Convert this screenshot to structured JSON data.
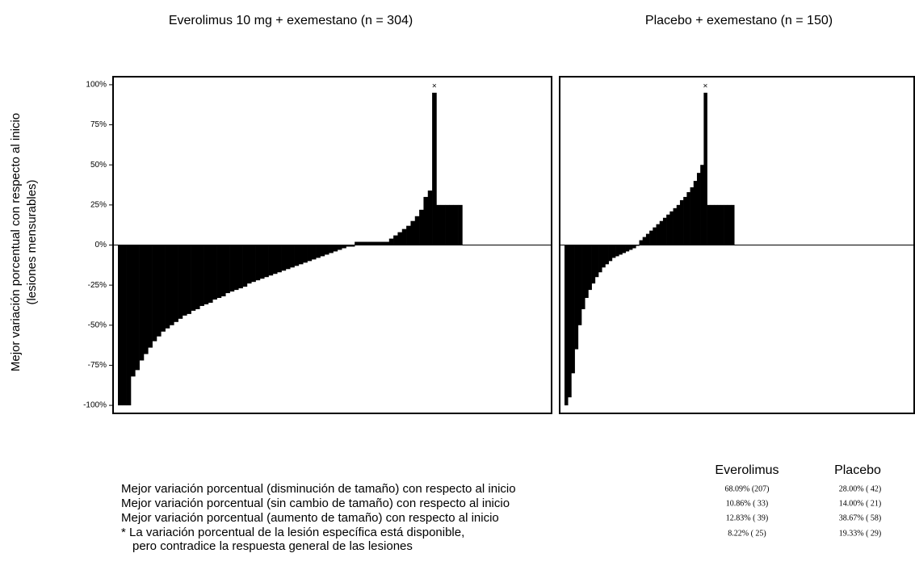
{
  "chart_data": [
    {
      "type": "waterfall",
      "title": "Everolimus 10 mg + exemestano (n = 304)",
      "y_label": [
        "Mejor variación porcentual con respecto al inicio",
        "(lesiones mensurables)"
      ],
      "values": [
        -100,
        -100,
        -100,
        -82,
        -78,
        -72,
        -68,
        -64,
        -60,
        -57,
        -54,
        -52,
        -50,
        -48,
        -46,
        -44,
        -43,
        -41,
        -40,
        -38,
        -37,
        -36,
        -34,
        -33,
        -32,
        -30,
        -29,
        -28,
        -27,
        -26,
        -24,
        -23,
        -22,
        -21,
        -20,
        -19,
        -18,
        -17,
        -16,
        -15,
        -14,
        -13,
        -12,
        -11,
        -10,
        -9,
        -8,
        -7,
        -6,
        -5,
        -4,
        -3,
        -2,
        -1,
        -1,
        2,
        2,
        2,
        2,
        2,
        2,
        2,
        2,
        4,
        6,
        8,
        10,
        12,
        15,
        18,
        22,
        30,
        34,
        95,
        25,
        25,
        25,
        25,
        25,
        25
      ],
      "color": "#000000",
      "annotation": "×",
      "ylim": [
        -105,
        105
      ],
      "yticks": [
        {
          "value": -100,
          "label": "-100%"
        },
        {
          "value": -75,
          "label": "-75%"
        },
        {
          "value": -50,
          "label": "-50%"
        },
        {
          "value": -25,
          "label": "-25%"
        },
        {
          "value": 0,
          "label": "0%"
        },
        {
          "value": 25,
          "label": "25%"
        },
        {
          "value": 50,
          "label": "50%"
        },
        {
          "value": 75,
          "label": "75%"
        },
        {
          "value": 100,
          "label": "100%"
        }
      ]
    },
    {
      "type": "waterfall",
      "title": "Placebo + exemestano (n = 150)",
      "values": [
        -100,
        -95,
        -80,
        -65,
        -50,
        -40,
        -33,
        -28,
        -24,
        -20,
        -17,
        -14,
        -12,
        -10,
        -8,
        -7,
        -6,
        -5,
        -4,
        -3,
        -2,
        0,
        3,
        5,
        7,
        9,
        11,
        13,
        15,
        17,
        19,
        21,
        23,
        25,
        28,
        30,
        33,
        36,
        40,
        45,
        50,
        95,
        25,
        25,
        25,
        25,
        25,
        25,
        25,
        25
      ],
      "color": "#000000",
      "annotation": "×",
      "ylim": [
        -105,
        105
      ]
    }
  ],
  "table": {
    "headers": [
      "Everolimus",
      "Placebo"
    ],
    "rows": [
      [
        "Mejor variación porcentual (disminución de tamaño) con respecto al inicio",
        "68.09% (207)",
        "28.00% ( 42)"
      ],
      [
        "Mejor variación porcentual (sin cambio de tamaño) con respecto al inicio",
        "10.86% ( 33)",
        "14.00% ( 21)"
      ],
      [
        "Mejor variación porcentual (aumento de tamaño) con respecto al inicio",
        "12.83% ( 39)",
        "38.67% ( 58)"
      ],
      [
        "* La variación porcentual de la lesión específica está disponible,",
        "8.22% ( 25)",
        "19.33% ( 29)"
      ]
    ],
    "note": "pero contradice la respuesta general de las lesiones"
  }
}
